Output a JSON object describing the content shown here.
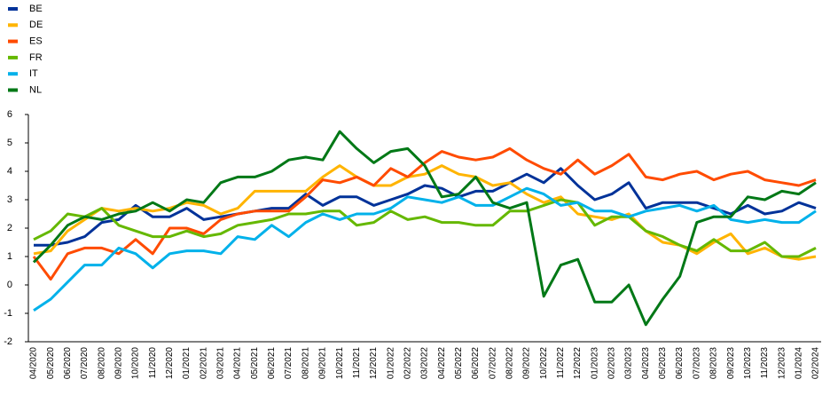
{
  "chart_data": {
    "type": "line",
    "categories": [
      "04/2020",
      "05/2020",
      "06/2020",
      "07/2020",
      "08/2020",
      "09/2020",
      "10/2020",
      "11/2020",
      "12/2020",
      "01/2021",
      "02/2021",
      "03/2021",
      "04/2021",
      "05/2021",
      "06/2021",
      "07/2021",
      "08/2021",
      "09/2021",
      "10/2021",
      "11/2021",
      "12/2021",
      "01/2022",
      "02/2022",
      "03/2022",
      "04/2022",
      "05/2022",
      "06/2022",
      "07/2022",
      "08/2022",
      "09/2022",
      "10/2022",
      "11/2022",
      "12/2022",
      "01/2023",
      "02/2023",
      "03/2023",
      "04/2023",
      "05/2023",
      "06/2023",
      "07/2023",
      "08/2023",
      "09/2023",
      "10/2023",
      "11/2023",
      "12/2023",
      "01/2024",
      "02/2024"
    ],
    "series": [
      {
        "name": "BE",
        "color": "#003299",
        "values": [
          1.4,
          1.4,
          1.5,
          1.7,
          2.2,
          2.3,
          2.8,
          2.4,
          2.4,
          2.7,
          2.3,
          2.4,
          2.5,
          2.6,
          2.7,
          2.7,
          3.2,
          2.8,
          3.1,
          3.1,
          2.8,
          3.0,
          3.2,
          3.5,
          3.4,
          3.1,
          3.3,
          3.3,
          3.6,
          3.9,
          3.6,
          4.1,
          3.5,
          3.0,
          3.2,
          3.6,
          2.7,
          2.9,
          2.9,
          2.9,
          2.7,
          2.5,
          2.8,
          2.5,
          2.6,
          2.9,
          2.7
        ]
      },
      {
        "name": "DE",
        "color": "#ffb400",
        "values": [
          1.1,
          1.2,
          1.9,
          2.3,
          2.7,
          2.6,
          2.7,
          2.6,
          2.7,
          2.9,
          2.8,
          2.5,
          2.7,
          3.3,
          3.3,
          3.3,
          3.3,
          3.8,
          4.2,
          3.8,
          3.5,
          3.5,
          3.8,
          3.9,
          4.2,
          3.9,
          3.8,
          3.5,
          3.6,
          3.2,
          2.9,
          3.1,
          2.5,
          2.4,
          2.3,
          2.5,
          1.9,
          1.5,
          1.4,
          1.1,
          1.5,
          1.8,
          1.1,
          1.3,
          1.0,
          0.9,
          1.0
        ]
      },
      {
        "name": "ES",
        "color": "#ff4b00",
        "values": [
          1.0,
          0.2,
          1.1,
          1.3,
          1.3,
          1.1,
          1.6,
          1.1,
          2.0,
          2.0,
          1.8,
          2.3,
          2.5,
          2.6,
          2.6,
          2.6,
          3.1,
          3.7,
          3.6,
          3.8,
          3.5,
          4.1,
          3.8,
          4.3,
          4.7,
          4.5,
          4.4,
          4.5,
          4.8,
          4.4,
          4.1,
          3.9,
          4.4,
          3.9,
          4.2,
          4.6,
          3.8,
          3.7,
          3.9,
          4.0,
          3.7,
          3.9,
          4.0,
          3.7,
          3.6,
          3.5,
          3.7
        ]
      },
      {
        "name": "FR",
        "color": "#65b800",
        "values": [
          1.6,
          1.9,
          2.5,
          2.4,
          2.7,
          2.1,
          1.9,
          1.7,
          1.7,
          1.9,
          1.7,
          1.8,
          2.1,
          2.2,
          2.3,
          2.5,
          2.5,
          2.6,
          2.6,
          2.1,
          2.2,
          2.6,
          2.3,
          2.4,
          2.2,
          2.2,
          2.1,
          2.1,
          2.6,
          2.6,
          2.8,
          3.0,
          2.9,
          2.1,
          2.4,
          2.4,
          1.9,
          1.7,
          1.4,
          1.2,
          1.6,
          1.2,
          1.2,
          1.5,
          1.0,
          1.0,
          1.3
        ]
      },
      {
        "name": "IT",
        "color": "#00b1ea",
        "values": [
          -0.9,
          -0.5,
          0.1,
          0.7,
          0.7,
          1.3,
          1.1,
          0.6,
          1.1,
          1.2,
          1.2,
          1.1,
          1.7,
          1.6,
          2.1,
          1.7,
          2.2,
          2.5,
          2.3,
          2.5,
          2.5,
          2.7,
          3.1,
          3.0,
          2.9,
          3.1,
          2.8,
          2.8,
          3.1,
          3.4,
          3.2,
          2.8,
          2.9,
          2.6,
          2.6,
          2.4,
          2.6,
          2.7,
          2.8,
          2.6,
          2.8,
          2.3,
          2.2,
          2.3,
          2.2,
          2.2,
          2.6
        ]
      },
      {
        "name": "NL",
        "color": "#007816",
        "values": [
          0.8,
          1.4,
          2.1,
          2.4,
          2.3,
          2.5,
          2.6,
          2.9,
          2.6,
          3.0,
          2.9,
          3.6,
          3.8,
          3.8,
          4.0,
          4.4,
          4.5,
          4.4,
          5.4,
          4.8,
          4.3,
          4.7,
          4.8,
          4.2,
          3.1,
          3.2,
          3.8,
          2.9,
          2.7,
          2.9,
          -0.4,
          0.7,
          0.9,
          -0.6,
          -0.6,
          0.0,
          -1.4,
          -0.5,
          0.3,
          2.2,
          2.4,
          2.4,
          3.1,
          3.0,
          3.3,
          3.2,
          3.6
        ]
      }
    ],
    "ylim": [
      -2,
      6
    ],
    "yticks": [
      -2,
      -1,
      0,
      1,
      2,
      3,
      4,
      5,
      6
    ],
    "grid": false,
    "legend": "top-left"
  }
}
